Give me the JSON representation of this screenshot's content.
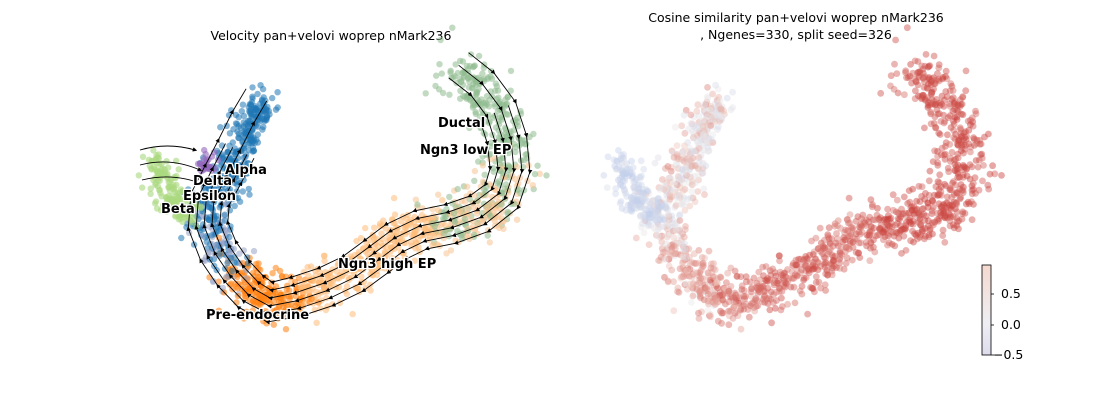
{
  "chart_data": [
    {
      "type": "scatter",
      "subtype": "umap-velocity-stream",
      "title": "Velocity pan+velovi woprep nMark236",
      "axes": "off",
      "grid": false,
      "legend": "on data",
      "clusters": [
        {
          "name": "Ductal",
          "color": "#8fbc8f"
        },
        {
          "name": "Ngn3 low EP",
          "color": "#f7c593"
        },
        {
          "name": "Ngn3 high EP",
          "color": "#ffbb78"
        },
        {
          "name": "Pre-endocrine",
          "color": "#ff7f0e"
        },
        {
          "name": "Alpha",
          "color": "#1f77b4"
        },
        {
          "name": "Delta",
          "color": "#9467bd"
        },
        {
          "name": "Epsilon",
          "color": "#98a4c8"
        },
        {
          "name": "Beta",
          "color": "#aad97f"
        }
      ]
    },
    {
      "type": "scatter",
      "subtype": "umap-continuous",
      "title_line1": "Cosine similarity pan+velovi woprep nMark236",
      "title_line2": ", Ngenes=330, split seed=326",
      "axes": "off",
      "grid": false,
      "colormap": "coolwarm",
      "colorbar": {
        "range": [
          -0.5,
          0.95
        ],
        "ticks": [
          "0.5",
          "0.0",
          "−0.5"
        ],
        "tick_values": [
          0.5,
          0.0,
          -0.5
        ]
      }
    }
  ]
}
